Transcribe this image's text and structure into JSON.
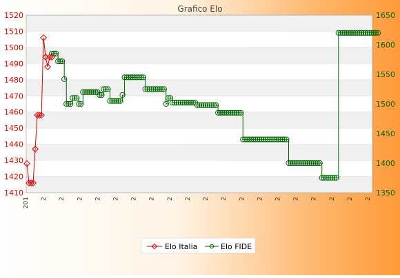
{
  "chart_data": {
    "type": "line",
    "title": "Grafico Elo",
    "xlabel": "",
    "ylabel_left": "",
    "ylabel_right": "",
    "left_axis": {
      "min": 1410,
      "max": 1520,
      "step": 10,
      "color": "#dd0000"
    },
    "right_axis": {
      "min": 1350,
      "max": 1650,
      "step": 50,
      "color": "#006600"
    },
    "grid": true,
    "legend_position": "bottom",
    "x_count": 167,
    "x_tick_labels": [
      "201",
      "2",
      "2",
      "2",
      "2",
      "2",
      "2",
      "2",
      "2",
      "2",
      "2",
      "2",
      "2",
      "2",
      "2",
      "2",
      "2",
      "2",
      "2",
      "2"
    ],
    "series": [
      {
        "name": "Elo Italia",
        "axis": "left",
        "color": "#dd0000",
        "marker": "diamond",
        "values": [
          1428,
          1416,
          1416,
          1416,
          1437,
          1458,
          1458,
          1458,
          1506,
          1494,
          1488,
          1494,
          1494
        ]
      },
      {
        "name": "Elo FIDE",
        "axis": "right",
        "color": "#006600",
        "marker": "circle",
        "start_index": 12,
        "segments": [
          [
            1585,
            3
          ],
          [
            1572,
            3
          ],
          [
            1542,
            1
          ],
          [
            1500,
            3
          ],
          [
            1510,
            3
          ],
          [
            1500,
            2
          ],
          [
            1520,
            8
          ],
          [
            1515,
            2
          ],
          [
            1525,
            3
          ],
          [
            1505,
            6
          ],
          [
            1515,
            1
          ],
          [
            1545,
            10
          ],
          [
            1525,
            10
          ],
          [
            1500,
            1
          ],
          [
            1510,
            2
          ],
          [
            1502,
            12
          ],
          [
            1498,
            10
          ],
          [
            1485,
            12
          ],
          [
            1440,
            22
          ],
          [
            1400,
            16
          ],
          [
            1375,
            8
          ],
          [
            1620,
            20
          ]
        ]
      }
    ]
  }
}
